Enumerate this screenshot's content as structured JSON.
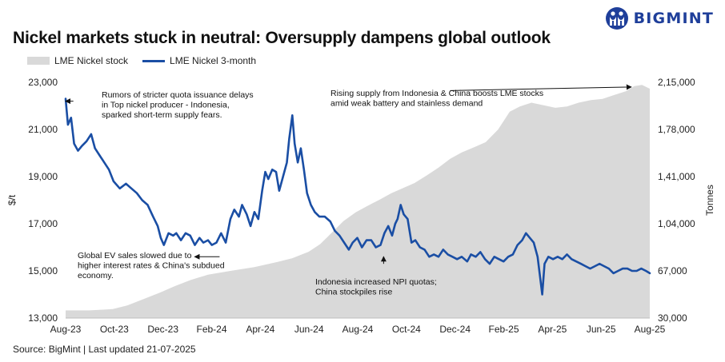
{
  "header": {
    "title": "Nickel markets stuck in neutral: Oversupply dampens global outlook",
    "logo_text": "BIGMINT",
    "logo_icon": "bigmint-people-logo"
  },
  "source": "Source: BigMint | Last updated 21-07-2025",
  "colors": {
    "price_line": "#1a4ea4",
    "stock_area": "#d9d9d9",
    "brand": "#1f3f9a"
  },
  "chart_data": {
    "type": "line",
    "title": "Nickel markets stuck in neutral: Oversupply dampens global outlook",
    "xlabel": "",
    "ylabel": "$/t",
    "y2label": "Tonnes",
    "x_ticks": [
      "Aug-23",
      "Oct-23",
      "Dec-23",
      "Feb-24",
      "Apr-24",
      "Jun-24",
      "Aug-24",
      "Oct-24",
      "Dec-24",
      "Feb-25",
      "Apr-25",
      "Jun-25",
      "Aug-25"
    ],
    "x_range": [
      "2023-08-01",
      "2025-08-25"
    ],
    "ylim": [
      13000,
      23000
    ],
    "y_ticks": [
      13000,
      15000,
      17000,
      19000,
      21000,
      23000
    ],
    "y_tick_labels": [
      "13,000",
      "15,000",
      "17,000",
      "19,000",
      "21,000",
      "23,000"
    ],
    "y2lim": [
      30000,
      215000
    ],
    "y2_ticks": [
      30000,
      67000,
      104000,
      141000,
      178000,
      215000
    ],
    "y2_tick_labels": [
      "30,000",
      "67,000",
      "1,04,000",
      "1,41,000",
      "1,78,000",
      "2,15,000"
    ],
    "legend_position": "top-left",
    "grid": false,
    "series": [
      {
        "name": "LME Nickel stock",
        "type": "area",
        "axis": "right",
        "points": [
          [
            "2023-08-01",
            36000
          ],
          [
            "2023-09-01",
            36000
          ],
          [
            "2023-10-01",
            37000
          ],
          [
            "2023-10-20",
            40000
          ],
          [
            "2023-11-10",
            45000
          ],
          [
            "2023-12-01",
            50000
          ],
          [
            "2023-12-20",
            55000
          ],
          [
            "2024-01-10",
            60000
          ],
          [
            "2024-02-01",
            64000
          ],
          [
            "2024-03-01",
            67000
          ],
          [
            "2024-04-01",
            70000
          ],
          [
            "2024-05-01",
            74000
          ],
          [
            "2024-05-20",
            77000
          ],
          [
            "2024-06-10",
            82000
          ],
          [
            "2024-06-25",
            88000
          ],
          [
            "2024-07-10",
            97000
          ],
          [
            "2024-07-25",
            106000
          ],
          [
            "2024-08-10",
            113000
          ],
          [
            "2024-08-25",
            118000
          ],
          [
            "2024-09-10",
            123000
          ],
          [
            "2024-09-25",
            128000
          ],
          [
            "2024-10-10",
            132000
          ],
          [
            "2024-10-25",
            136000
          ],
          [
            "2024-11-10",
            142000
          ],
          [
            "2024-11-25",
            148000
          ],
          [
            "2024-12-10",
            155000
          ],
          [
            "2024-12-25",
            160000
          ],
          [
            "2025-01-10",
            164000
          ],
          [
            "2025-01-25",
            168000
          ],
          [
            "2025-02-10",
            178000
          ],
          [
            "2025-02-25",
            192000
          ],
          [
            "2025-03-10",
            196000
          ],
          [
            "2025-03-25",
            199000
          ],
          [
            "2025-04-10",
            197000
          ],
          [
            "2025-04-25",
            195000
          ],
          [
            "2025-05-10",
            196000
          ],
          [
            "2025-05-25",
            199000
          ],
          [
            "2025-06-10",
            201000
          ],
          [
            "2025-06-25",
            202000
          ],
          [
            "2025-07-10",
            205000
          ],
          [
            "2025-07-25",
            208000
          ],
          [
            "2025-08-05",
            212000
          ],
          [
            "2025-08-15",
            213000
          ],
          [
            "2025-08-25",
            210000
          ]
        ]
      },
      {
        "name": "LME Nickel 3-month",
        "type": "line",
        "axis": "left",
        "points": [
          [
            "2023-08-01",
            22300
          ],
          [
            "2023-08-04",
            21200
          ],
          [
            "2023-08-08",
            21500
          ],
          [
            "2023-08-12",
            20400
          ],
          [
            "2023-08-17",
            20100
          ],
          [
            "2023-08-22",
            20300
          ],
          [
            "2023-08-28",
            20500
          ],
          [
            "2023-09-03",
            20800
          ],
          [
            "2023-09-08",
            20200
          ],
          [
            "2023-09-14",
            19900
          ],
          [
            "2023-09-20",
            19600
          ],
          [
            "2023-09-26",
            19300
          ],
          [
            "2023-10-02",
            18800
          ],
          [
            "2023-10-10",
            18500
          ],
          [
            "2023-10-18",
            18700
          ],
          [
            "2023-10-25",
            18500
          ],
          [
            "2023-11-01",
            18300
          ],
          [
            "2023-11-08",
            18000
          ],
          [
            "2023-11-15",
            17800
          ],
          [
            "2023-11-22",
            17300
          ],
          [
            "2023-11-28",
            16900
          ],
          [
            "2023-12-02",
            16400
          ],
          [
            "2023-12-06",
            16100
          ],
          [
            "2023-12-12",
            16600
          ],
          [
            "2023-12-18",
            16500
          ],
          [
            "2023-12-22",
            16600
          ],
          [
            "2023-12-28",
            16300
          ],
          [
            "2024-01-03",
            16600
          ],
          [
            "2024-01-09",
            16500
          ],
          [
            "2024-01-15",
            16100
          ],
          [
            "2024-01-21",
            16400
          ],
          [
            "2024-01-26",
            16200
          ],
          [
            "2024-02-01",
            16300
          ],
          [
            "2024-02-06",
            16100
          ],
          [
            "2024-02-12",
            16200
          ],
          [
            "2024-02-18",
            16600
          ],
          [
            "2024-02-24",
            16200
          ],
          [
            "2024-03-01",
            17200
          ],
          [
            "2024-03-06",
            17600
          ],
          [
            "2024-03-12",
            17300
          ],
          [
            "2024-03-16",
            17800
          ],
          [
            "2024-03-22",
            17400
          ],
          [
            "2024-03-27",
            16900
          ],
          [
            "2024-04-01",
            17500
          ],
          [
            "2024-04-06",
            17200
          ],
          [
            "2024-04-11",
            18400
          ],
          [
            "2024-04-15",
            19200
          ],
          [
            "2024-04-19",
            18900
          ],
          [
            "2024-04-24",
            19300
          ],
          [
            "2024-04-29",
            19200
          ],
          [
            "2024-05-03",
            18400
          ],
          [
            "2024-05-08",
            19000
          ],
          [
            "2024-05-13",
            19600
          ],
          [
            "2024-05-16",
            20600
          ],
          [
            "2024-05-20",
            21600
          ],
          [
            "2024-05-23",
            20400
          ],
          [
            "2024-05-27",
            19600
          ],
          [
            "2024-05-31",
            20200
          ],
          [
            "2024-06-04",
            19300
          ],
          [
            "2024-06-08",
            18300
          ],
          [
            "2024-06-13",
            17800
          ],
          [
            "2024-06-18",
            17500
          ],
          [
            "2024-06-24",
            17300
          ],
          [
            "2024-07-01",
            17300
          ],
          [
            "2024-07-08",
            17100
          ],
          [
            "2024-07-14",
            16700
          ],
          [
            "2024-07-20",
            16500
          ],
          [
            "2024-07-26",
            16200
          ],
          [
            "2024-08-01",
            15900
          ],
          [
            "2024-08-06",
            16200
          ],
          [
            "2024-08-12",
            16400
          ],
          [
            "2024-08-18",
            16000
          ],
          [
            "2024-08-24",
            16300
          ],
          [
            "2024-08-30",
            16300
          ],
          [
            "2024-09-05",
            16000
          ],
          [
            "2024-09-11",
            16100
          ],
          [
            "2024-09-16",
            16600
          ],
          [
            "2024-09-21",
            16900
          ],
          [
            "2024-09-26",
            16500
          ],
          [
            "2024-09-30",
            17000
          ],
          [
            "2024-10-03",
            17200
          ],
          [
            "2024-10-07",
            17800
          ],
          [
            "2024-10-11",
            17400
          ],
          [
            "2024-10-16",
            17200
          ],
          [
            "2024-10-21",
            16200
          ],
          [
            "2024-10-26",
            16300
          ],
          [
            "2024-11-01",
            16000
          ],
          [
            "2024-11-07",
            15900
          ],
          [
            "2024-11-13",
            15600
          ],
          [
            "2024-11-19",
            15700
          ],
          [
            "2024-11-25",
            15600
          ],
          [
            "2024-12-01",
            15900
          ],
          [
            "2024-12-07",
            15700
          ],
          [
            "2024-12-13",
            15600
          ],
          [
            "2024-12-19",
            15500
          ],
          [
            "2024-12-25",
            15600
          ],
          [
            "2025-01-01",
            15400
          ],
          [
            "2025-01-06",
            15700
          ],
          [
            "2025-01-12",
            15600
          ],
          [
            "2025-01-18",
            15800
          ],
          [
            "2025-01-24",
            15500
          ],
          [
            "2025-01-30",
            15300
          ],
          [
            "2025-02-05",
            15600
          ],
          [
            "2025-02-11",
            15500
          ],
          [
            "2025-02-17",
            15400
          ],
          [
            "2025-02-23",
            15600
          ],
          [
            "2025-03-01",
            15700
          ],
          [
            "2025-03-07",
            16100
          ],
          [
            "2025-03-13",
            16300
          ],
          [
            "2025-03-18",
            16600
          ],
          [
            "2025-03-23",
            16400
          ],
          [
            "2025-03-28",
            16200
          ],
          [
            "2025-04-02",
            15600
          ],
          [
            "2025-04-05",
            14800
          ],
          [
            "2025-04-08",
            14000
          ],
          [
            "2025-04-11",
            15300
          ],
          [
            "2025-04-16",
            15600
          ],
          [
            "2025-04-22",
            15500
          ],
          [
            "2025-04-28",
            15600
          ],
          [
            "2025-05-04",
            15500
          ],
          [
            "2025-05-10",
            15700
          ],
          [
            "2025-05-16",
            15500
          ],
          [
            "2025-05-22",
            15400
          ],
          [
            "2025-05-28",
            15300
          ],
          [
            "2025-06-03",
            15200
          ],
          [
            "2025-06-09",
            15100
          ],
          [
            "2025-06-15",
            15200
          ],
          [
            "2025-06-21",
            15300
          ],
          [
            "2025-06-27",
            15200
          ],
          [
            "2025-07-03",
            15100
          ],
          [
            "2025-07-09",
            14900
          ],
          [
            "2025-07-15",
            15000
          ],
          [
            "2025-07-21",
            15100
          ],
          [
            "2025-07-27",
            15100
          ],
          [
            "2025-08-02",
            15000
          ],
          [
            "2025-08-08",
            15000
          ],
          [
            "2025-08-14",
            15100
          ],
          [
            "2025-08-20",
            15000
          ],
          [
            "2025-08-25",
            14900
          ]
        ]
      }
    ],
    "annotations": [
      {
        "lines": [
          "Rumors of stricter quota issuance delays",
          "in Top nickel producer - Indonesia,",
          "sparked short-term supply fears."
        ],
        "arrow_from": [
          "2023-08-11",
          22200
        ],
        "arrow_to": [
          "2023-08-01",
          22200
        ]
      },
      {
        "lines": [
          "Rising supply from Indonesia & China boosts LME stocks",
          "amid weak battery and stainless demand"
        ],
        "arrow_from": [
          "2024-12-10",
          22650
        ],
        "arrow_to": [
          "2025-08-01",
          22800
        ]
      },
      {
        "lines": [
          "Global EV sales slowed due to",
          "higher interest rates & China's subdued",
          "economy."
        ],
        "arrow_from": [
          "2024-02-16",
          15600
        ],
        "arrow_to": [
          "2024-01-15",
          15600
        ]
      },
      {
        "lines": [
          "Indonesia increased NPI quotas;",
          "China stockpiles rise"
        ],
        "arrow_from": [
          "2024-09-15",
          15300
        ],
        "arrow_to": [
          "2024-09-15",
          15600
        ]
      }
    ]
  }
}
